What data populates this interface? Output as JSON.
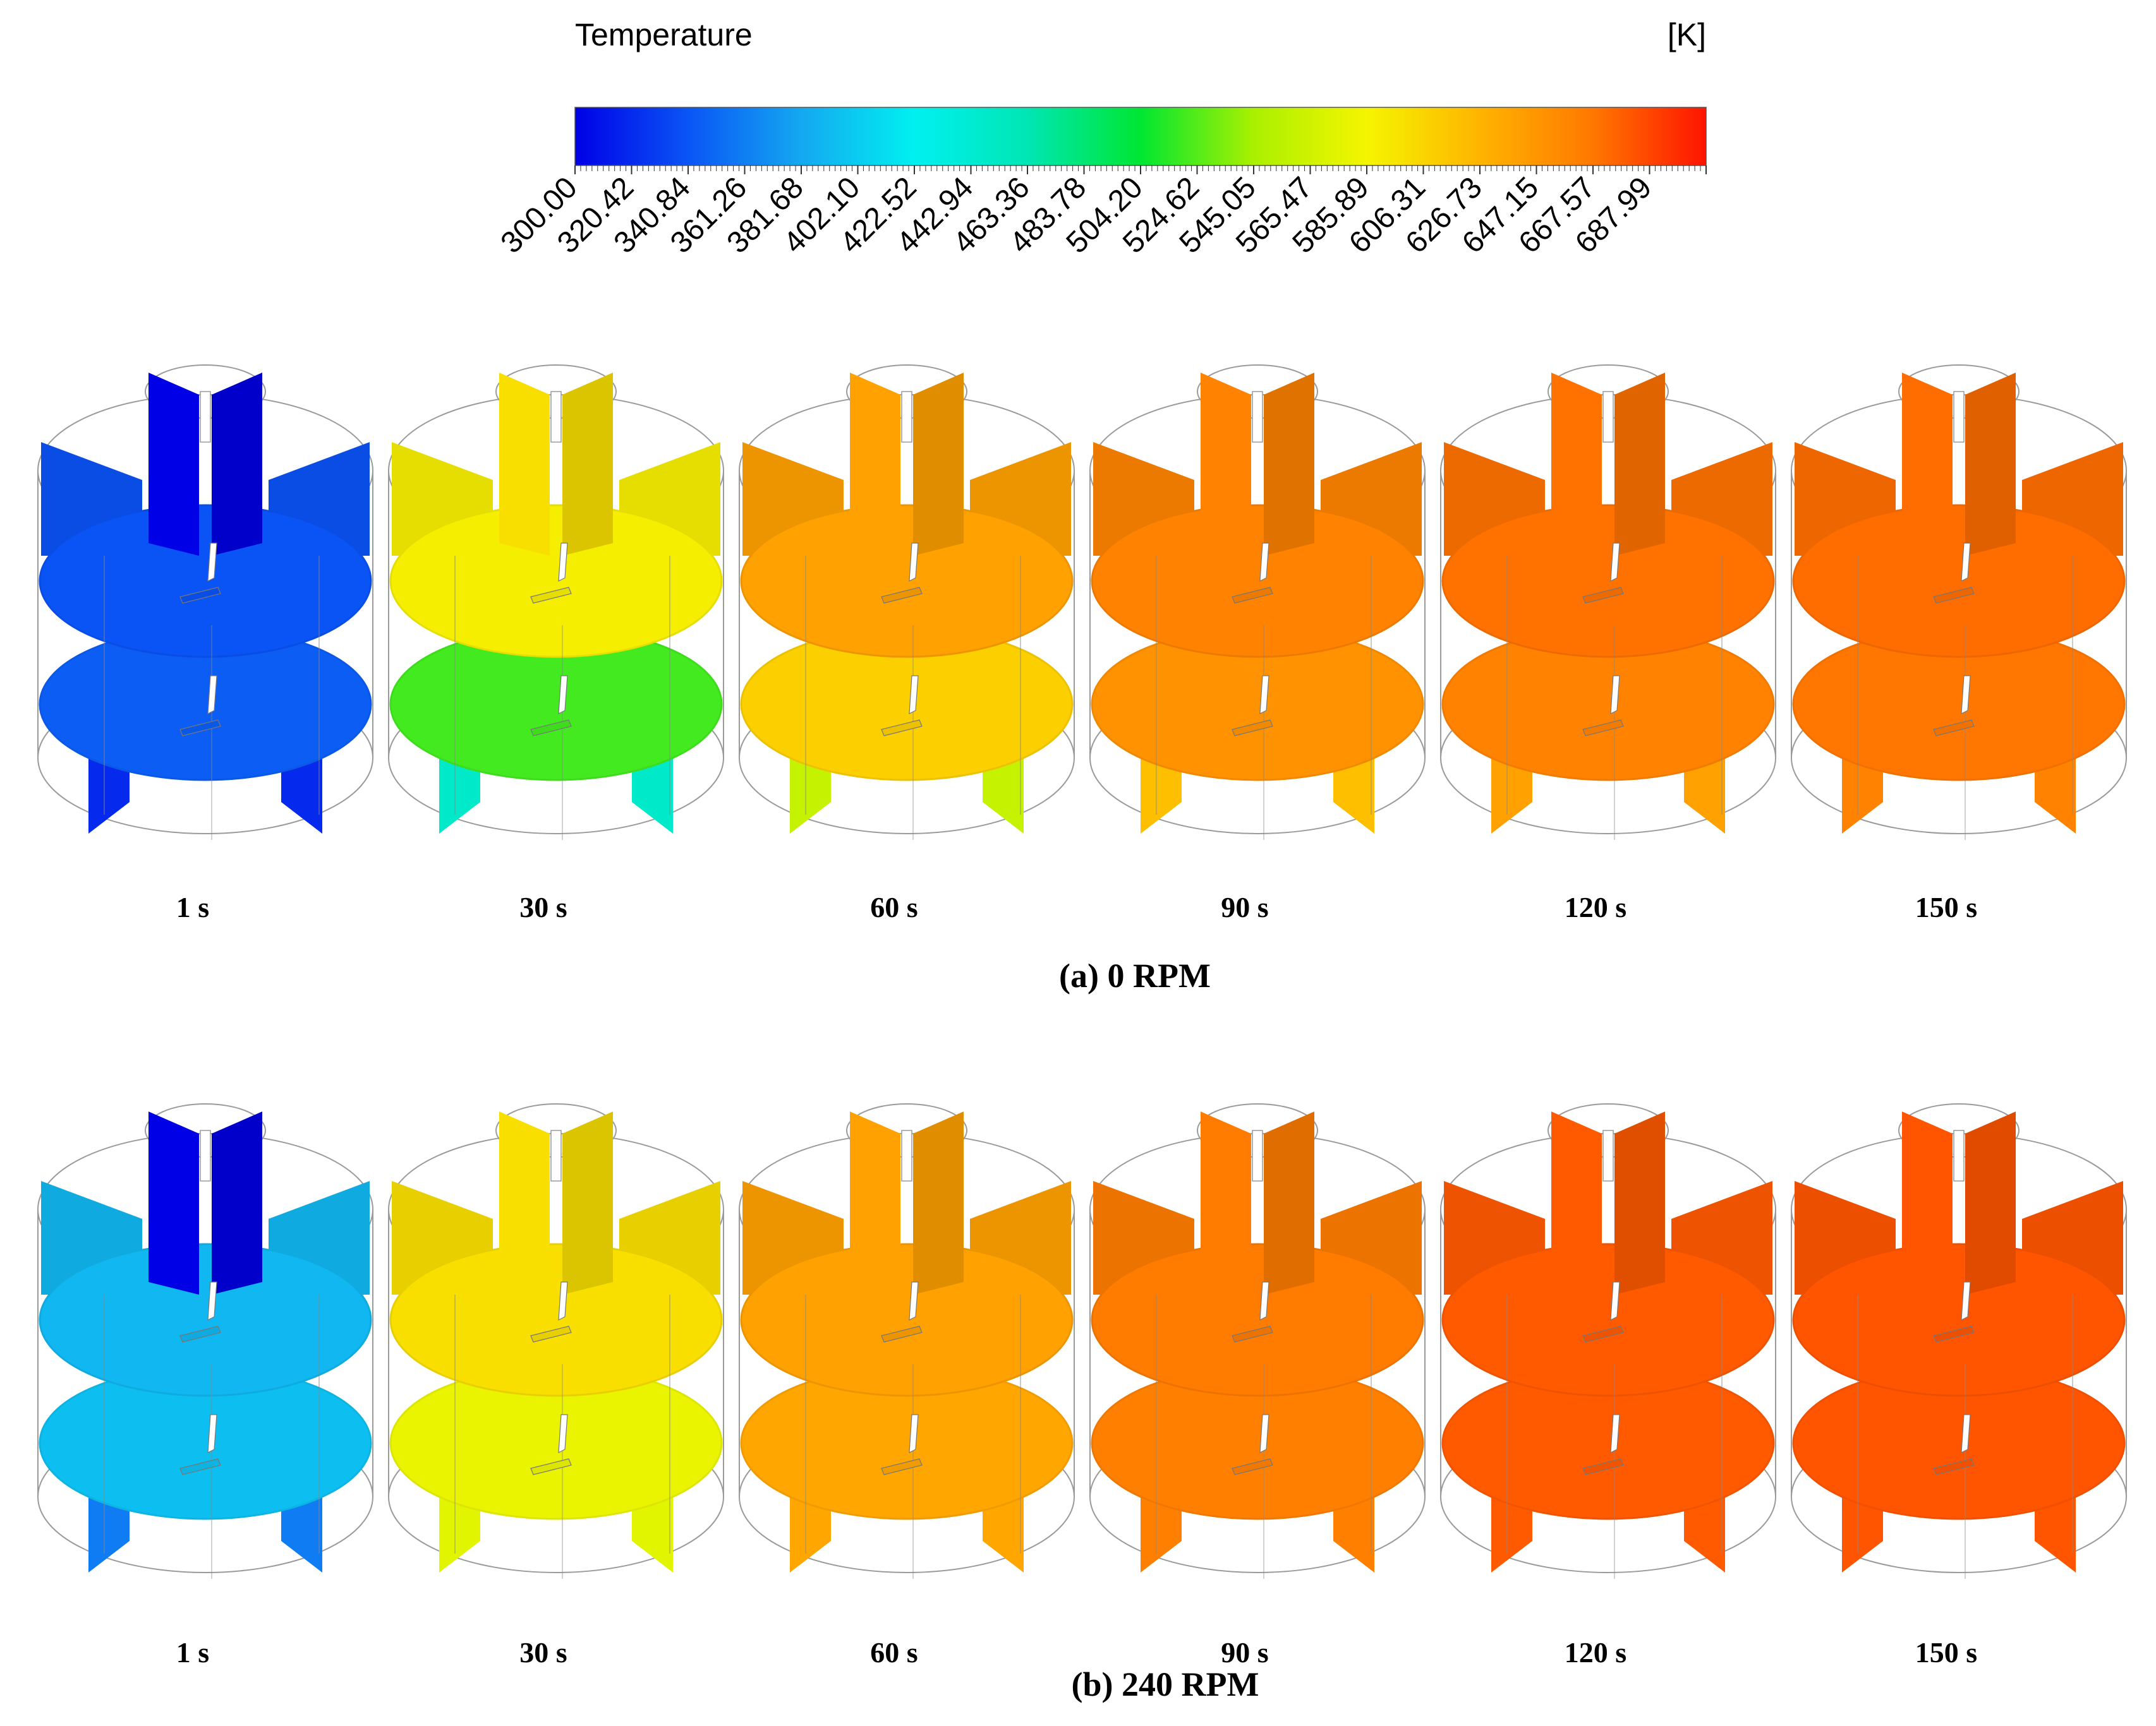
{
  "colorbar": {
    "title": "Temperature",
    "unit": "[K]",
    "min": 300.0,
    "max": 708.41,
    "ticks": [
      "300.00",
      "320.42",
      "340.84",
      "361.26",
      "381.68",
      "402.10",
      "422.52",
      "442.94",
      "463.36",
      "483.78",
      "504.20",
      "524.62",
      "545.05",
      "565.47",
      "585.89",
      "606.31",
      "626.73",
      "647.15",
      "667.57",
      "687.99"
    ],
    "gradient": [
      "#0000e6",
      "#0a55f5",
      "#14a8f0",
      "#00f0f0",
      "#00e6b4",
      "#00e632",
      "#aaf000",
      "#f5f500",
      "#ffb400",
      "#ff7800",
      "#ff1400"
    ]
  },
  "panels": [
    {
      "caption": "(a) 0 RPM",
      "frames": [
        {
          "label": "1 s",
          "time_s": 1,
          "temp_K": 340,
          "shaft_temp_K": 300,
          "lower_temp_K": 345,
          "bottom_fin_temp_K": 320
        },
        {
          "label": "30 s",
          "time_s": 30,
          "temp_K": 590,
          "shaft_temp_K": 600,
          "lower_temp_K": 520,
          "bottom_fin_temp_K": 450
        },
        {
          "label": "60 s",
          "time_s": 60,
          "temp_K": 640,
          "shaft_temp_K": 640,
          "lower_temp_K": 610,
          "bottom_fin_temp_K": 560
        },
        {
          "label": "90 s",
          "time_s": 90,
          "temp_K": 660,
          "shaft_temp_K": 660,
          "lower_temp_K": 650,
          "bottom_fin_temp_K": 620
        },
        {
          "label": "120 s",
          "time_s": 120,
          "temp_K": 670,
          "shaft_temp_K": 670,
          "lower_temp_K": 660,
          "bottom_fin_temp_K": 640
        },
        {
          "label": "150 s",
          "time_s": 150,
          "temp_K": 672,
          "shaft_temp_K": 672,
          "lower_temp_K": 668,
          "bottom_fin_temp_K": 660
        }
      ]
    },
    {
      "caption": "(b) 240 RPM",
      "frames": [
        {
          "label": "1 s",
          "time_s": 1,
          "temp_K": 390,
          "shaft_temp_K": 300,
          "lower_temp_K": 395,
          "bottom_fin_temp_K": 360
        },
        {
          "label": "30 s",
          "time_s": 30,
          "temp_K": 600,
          "shaft_temp_K": 600,
          "lower_temp_K": 580,
          "bottom_fin_temp_K": 575
        },
        {
          "label": "60 s",
          "time_s": 60,
          "temp_K": 640,
          "shaft_temp_K": 640,
          "lower_temp_K": 636,
          "bottom_fin_temp_K": 636
        },
        {
          "label": "90 s",
          "time_s": 90,
          "temp_K": 665,
          "shaft_temp_K": 665,
          "lower_temp_K": 662,
          "bottom_fin_temp_K": 662
        },
        {
          "label": "120 s",
          "time_s": 120,
          "temp_K": 680,
          "shaft_temp_K": 680,
          "lower_temp_K": 680,
          "bottom_fin_temp_K": 680
        },
        {
          "label": "150 s",
          "time_s": 150,
          "temp_K": 682,
          "shaft_temp_K": 682,
          "lower_temp_K": 682,
          "bottom_fin_temp_K": 682
        }
      ]
    }
  ]
}
